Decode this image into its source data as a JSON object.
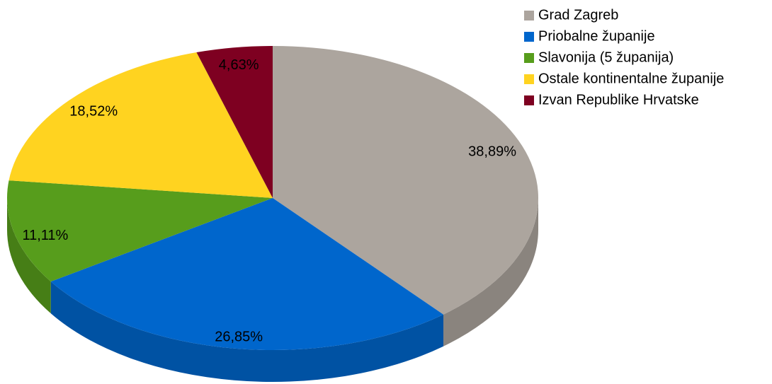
{
  "chart_data": {
    "type": "pie",
    "categories": [
      "Grad Zagreb",
      "Priobalne županije",
      "Slavonija (5 županija)",
      "Ostale kontinentalne županije",
      "Izvan Republike Hrvatske"
    ],
    "values": [
      38.89,
      26.85,
      11.11,
      18.52,
      4.63
    ],
    "value_labels": [
      "38,89%",
      "26,85%",
      "11,11%",
      "18,52%",
      "4,63%"
    ],
    "colors": [
      "#aca59e",
      "#0066cc",
      "#579d1c",
      "#ffd320",
      "#7e0021"
    ],
    "legend": "top-right"
  }
}
